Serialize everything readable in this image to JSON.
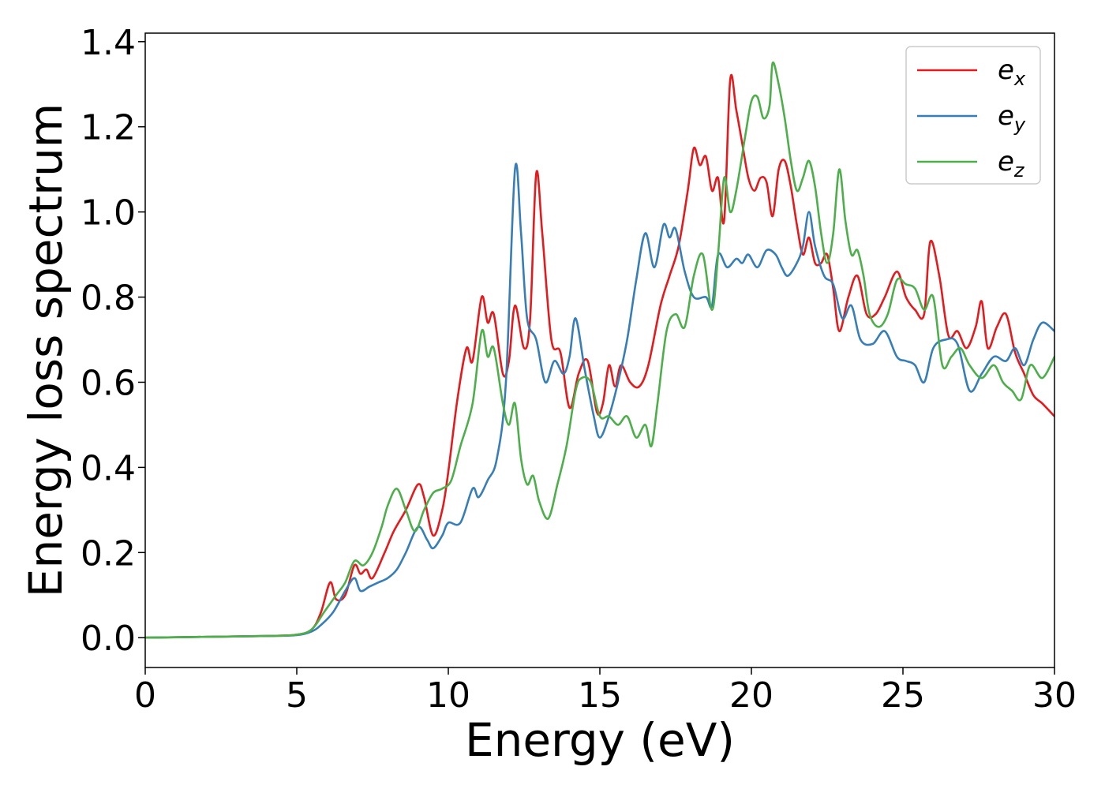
{
  "chart_data": {
    "type": "line",
    "title": "",
    "xlabel": "Energy (eV)",
    "ylabel": "Energy loss spectrum",
    "xlim": [
      0,
      30
    ],
    "ylim": [
      -0.07,
      1.42
    ],
    "x_ticks": [
      0,
      5,
      10,
      15,
      20,
      25,
      30
    ],
    "y_ticks": [
      0.0,
      0.2,
      0.4,
      0.6,
      0.8,
      1.0,
      1.2,
      1.4
    ],
    "x_tick_labels": [
      "0",
      "5",
      "10",
      "15",
      "20",
      "25",
      "30"
    ],
    "y_tick_labels": [
      "0.0",
      "0.2",
      "0.4",
      "0.6",
      "0.8",
      "1.0",
      "1.2",
      "1.4"
    ],
    "grid": false,
    "legend_position": "top-right",
    "series": [
      {
        "name": "e_x",
        "label_base": "e",
        "label_sub": "x",
        "color": "#e41a1c",
        "points": [
          [
            0,
            0
          ],
          [
            2,
            0.002
          ],
          [
            4,
            0.004
          ],
          [
            5,
            0.007
          ],
          [
            5.5,
            0.02
          ],
          [
            5.8,
            0.06
          ],
          [
            6.1,
            0.13
          ],
          [
            6.3,
            0.09
          ],
          [
            6.6,
            0.1
          ],
          [
            6.9,
            0.17
          ],
          [
            7.1,
            0.15
          ],
          [
            7.3,
            0.16
          ],
          [
            7.5,
            0.14
          ],
          [
            7.9,
            0.2
          ],
          [
            8.2,
            0.25
          ],
          [
            8.6,
            0.3
          ],
          [
            9.0,
            0.36
          ],
          [
            9.2,
            0.33
          ],
          [
            9.5,
            0.24
          ],
          [
            9.8,
            0.3
          ],
          [
            10.0,
            0.39
          ],
          [
            10.3,
            0.56
          ],
          [
            10.6,
            0.68
          ],
          [
            10.8,
            0.65
          ],
          [
            11.1,
            0.8
          ],
          [
            11.3,
            0.74
          ],
          [
            11.5,
            0.76
          ],
          [
            11.8,
            0.62
          ],
          [
            12.0,
            0.65
          ],
          [
            12.2,
            0.78
          ],
          [
            12.5,
            0.68
          ],
          [
            12.7,
            0.75
          ],
          [
            12.9,
            1.09
          ],
          [
            13.1,
            0.95
          ],
          [
            13.4,
            0.7
          ],
          [
            13.7,
            0.67
          ],
          [
            14.0,
            0.54
          ],
          [
            14.3,
            0.62
          ],
          [
            14.6,
            0.65
          ],
          [
            14.9,
            0.53
          ],
          [
            15.1,
            0.55
          ],
          [
            15.3,
            0.64
          ],
          [
            15.5,
            0.59
          ],
          [
            15.7,
            0.64
          ],
          [
            16.0,
            0.6
          ],
          [
            16.3,
            0.59
          ],
          [
            16.6,
            0.64
          ],
          [
            17.0,
            0.78
          ],
          [
            17.3,
            0.85
          ],
          [
            17.6,
            0.92
          ],
          [
            17.9,
            1.05
          ],
          [
            18.1,
            1.15
          ],
          [
            18.3,
            1.11
          ],
          [
            18.5,
            1.13
          ],
          [
            18.7,
            1.05
          ],
          [
            18.9,
            1.08
          ],
          [
            19.1,
            0.98
          ],
          [
            19.3,
            1.31
          ],
          [
            19.5,
            1.24
          ],
          [
            19.7,
            1.16
          ],
          [
            19.9,
            1.08
          ],
          [
            20.1,
            1.05
          ],
          [
            20.3,
            1.08
          ],
          [
            20.5,
            1.07
          ],
          [
            20.7,
            0.99
          ],
          [
            20.9,
            1.1
          ],
          [
            21.1,
            1.12
          ],
          [
            21.3,
            1.06
          ],
          [
            21.5,
            0.97
          ],
          [
            21.7,
            0.9
          ],
          [
            21.9,
            0.94
          ],
          [
            22.1,
            0.88
          ],
          [
            22.3,
            0.88
          ],
          [
            22.5,
            0.9
          ],
          [
            22.7,
            0.82
          ],
          [
            22.9,
            0.72
          ],
          [
            23.2,
            0.8
          ],
          [
            23.5,
            0.85
          ],
          [
            23.8,
            0.76
          ],
          [
            24.1,
            0.76
          ],
          [
            24.4,
            0.8
          ],
          [
            24.8,
            0.86
          ],
          [
            25.1,
            0.8
          ],
          [
            25.4,
            0.77
          ],
          [
            25.7,
            0.76
          ],
          [
            25.9,
            0.93
          ],
          [
            26.2,
            0.85
          ],
          [
            26.5,
            0.71
          ],
          [
            26.8,
            0.72
          ],
          [
            27.1,
            0.68
          ],
          [
            27.4,
            0.73
          ],
          [
            27.6,
            0.79
          ],
          [
            27.8,
            0.68
          ],
          [
            28.1,
            0.73
          ],
          [
            28.4,
            0.76
          ],
          [
            28.7,
            0.67
          ],
          [
            29.0,
            0.62
          ],
          [
            29.3,
            0.57
          ],
          [
            29.6,
            0.55
          ],
          [
            30.0,
            0.52
          ]
        ]
      },
      {
        "name": "e_y",
        "label_base": "e",
        "label_sub": "y",
        "color": "#377eb8",
        "points": [
          [
            0,
            0
          ],
          [
            2,
            0.002
          ],
          [
            4,
            0.004
          ],
          [
            5,
            0.006
          ],
          [
            5.5,
            0.015
          ],
          [
            5.8,
            0.03
          ],
          [
            6.2,
            0.06
          ],
          [
            6.6,
            0.11
          ],
          [
            6.9,
            0.14
          ],
          [
            7.1,
            0.11
          ],
          [
            7.4,
            0.12
          ],
          [
            7.7,
            0.13
          ],
          [
            8.0,
            0.14
          ],
          [
            8.3,
            0.16
          ],
          [
            8.6,
            0.2
          ],
          [
            9.0,
            0.26
          ],
          [
            9.3,
            0.23
          ],
          [
            9.5,
            0.21
          ],
          [
            9.8,
            0.24
          ],
          [
            10.0,
            0.27
          ],
          [
            10.4,
            0.27
          ],
          [
            10.8,
            0.35
          ],
          [
            11.0,
            0.33
          ],
          [
            11.3,
            0.37
          ],
          [
            11.6,
            0.42
          ],
          [
            11.9,
            0.6
          ],
          [
            12.2,
            1.1
          ],
          [
            12.4,
            0.95
          ],
          [
            12.6,
            0.75
          ],
          [
            12.9,
            0.7
          ],
          [
            13.2,
            0.6
          ],
          [
            13.5,
            0.65
          ],
          [
            13.8,
            0.62
          ],
          [
            14.0,
            0.66
          ],
          [
            14.2,
            0.75
          ],
          [
            14.5,
            0.63
          ],
          [
            14.8,
            0.52
          ],
          [
            15.0,
            0.47
          ],
          [
            15.3,
            0.52
          ],
          [
            15.6,
            0.6
          ],
          [
            15.9,
            0.7
          ],
          [
            16.2,
            0.84
          ],
          [
            16.5,
            0.95
          ],
          [
            16.8,
            0.87
          ],
          [
            17.1,
            0.97
          ],
          [
            17.3,
            0.94
          ],
          [
            17.5,
            0.96
          ],
          [
            17.8,
            0.86
          ],
          [
            18.1,
            0.8
          ],
          [
            18.5,
            0.8
          ],
          [
            18.7,
            0.78
          ],
          [
            18.9,
            0.9
          ],
          [
            19.2,
            0.87
          ],
          [
            19.5,
            0.89
          ],
          [
            19.7,
            0.88
          ],
          [
            19.9,
            0.9
          ],
          [
            20.2,
            0.87
          ],
          [
            20.5,
            0.91
          ],
          [
            20.8,
            0.9
          ],
          [
            21.0,
            0.87
          ],
          [
            21.2,
            0.85
          ],
          [
            21.5,
            0.88
          ],
          [
            21.7,
            0.92
          ],
          [
            21.9,
            1.0
          ],
          [
            22.1,
            0.92
          ],
          [
            22.4,
            0.85
          ],
          [
            22.7,
            0.83
          ],
          [
            23.0,
            0.75
          ],
          [
            23.3,
            0.78
          ],
          [
            23.6,
            0.7
          ],
          [
            24.0,
            0.69
          ],
          [
            24.4,
            0.72
          ],
          [
            24.8,
            0.66
          ],
          [
            25.1,
            0.65
          ],
          [
            25.4,
            0.64
          ],
          [
            25.7,
            0.6
          ],
          [
            26.0,
            0.68
          ],
          [
            26.4,
            0.7
          ],
          [
            26.8,
            0.69
          ],
          [
            27.2,
            0.58
          ],
          [
            27.6,
            0.62
          ],
          [
            28.0,
            0.66
          ],
          [
            28.4,
            0.65
          ],
          [
            28.7,
            0.68
          ],
          [
            29.0,
            0.64
          ],
          [
            29.3,
            0.7
          ],
          [
            29.6,
            0.74
          ],
          [
            30.0,
            0.72
          ]
        ]
      },
      {
        "name": "e_z",
        "label_base": "e",
        "label_sub": "z",
        "color": "#4daf4a",
        "points": [
          [
            0,
            0
          ],
          [
            2,
            0.002
          ],
          [
            4,
            0.004
          ],
          [
            5,
            0.007
          ],
          [
            5.5,
            0.02
          ],
          [
            5.9,
            0.06
          ],
          [
            6.3,
            0.1
          ],
          [
            6.6,
            0.13
          ],
          [
            6.9,
            0.18
          ],
          [
            7.2,
            0.17
          ],
          [
            7.5,
            0.2
          ],
          [
            7.8,
            0.26
          ],
          [
            8.0,
            0.31
          ],
          [
            8.3,
            0.35
          ],
          [
            8.6,
            0.3
          ],
          [
            8.9,
            0.25
          ],
          [
            9.2,
            0.3
          ],
          [
            9.5,
            0.34
          ],
          [
            9.8,
            0.35
          ],
          [
            10.1,
            0.37
          ],
          [
            10.4,
            0.45
          ],
          [
            10.8,
            0.55
          ],
          [
            11.1,
            0.72
          ],
          [
            11.3,
            0.66
          ],
          [
            11.5,
            0.68
          ],
          [
            11.8,
            0.55
          ],
          [
            12.0,
            0.5
          ],
          [
            12.2,
            0.55
          ],
          [
            12.4,
            0.42
          ],
          [
            12.6,
            0.36
          ],
          [
            12.8,
            0.38
          ],
          [
            13.0,
            0.32
          ],
          [
            13.3,
            0.28
          ],
          [
            13.6,
            0.36
          ],
          [
            13.9,
            0.45
          ],
          [
            14.2,
            0.58
          ],
          [
            14.4,
            0.61
          ],
          [
            14.7,
            0.6
          ],
          [
            15.0,
            0.52
          ],
          [
            15.3,
            0.52
          ],
          [
            15.6,
            0.5
          ],
          [
            15.9,
            0.52
          ],
          [
            16.2,
            0.47
          ],
          [
            16.5,
            0.5
          ],
          [
            16.7,
            0.45
          ],
          [
            16.9,
            0.55
          ],
          [
            17.2,
            0.72
          ],
          [
            17.5,
            0.76
          ],
          [
            17.8,
            0.73
          ],
          [
            18.1,
            0.85
          ],
          [
            18.4,
            0.9
          ],
          [
            18.7,
            0.77
          ],
          [
            18.9,
            0.9
          ],
          [
            19.1,
            1.08
          ],
          [
            19.3,
            1.0
          ],
          [
            19.5,
            1.05
          ],
          [
            19.8,
            1.18
          ],
          [
            20.0,
            1.26
          ],
          [
            20.2,
            1.27
          ],
          [
            20.4,
            1.22
          ],
          [
            20.6,
            1.25
          ],
          [
            20.7,
            1.35
          ],
          [
            20.9,
            1.3
          ],
          [
            21.1,
            1.22
          ],
          [
            21.3,
            1.12
          ],
          [
            21.5,
            1.05
          ],
          [
            21.7,
            1.08
          ],
          [
            21.9,
            1.12
          ],
          [
            22.1,
            1.06
          ],
          [
            22.3,
            0.95
          ],
          [
            22.5,
            0.88
          ],
          [
            22.7,
            0.95
          ],
          [
            22.9,
            1.1
          ],
          [
            23.1,
            0.98
          ],
          [
            23.3,
            0.9
          ],
          [
            23.5,
            0.91
          ],
          [
            23.7,
            0.85
          ],
          [
            23.9,
            0.76
          ],
          [
            24.2,
            0.73
          ],
          [
            24.5,
            0.76
          ],
          [
            24.8,
            0.84
          ],
          [
            25.1,
            0.83
          ],
          [
            25.4,
            0.82
          ],
          [
            25.7,
            0.77
          ],
          [
            26.0,
            0.8
          ],
          [
            26.3,
            0.64
          ],
          [
            26.6,
            0.66
          ],
          [
            26.9,
            0.68
          ],
          [
            27.2,
            0.64
          ],
          [
            27.6,
            0.61
          ],
          [
            28.0,
            0.64
          ],
          [
            28.3,
            0.6
          ],
          [
            28.6,
            0.58
          ],
          [
            28.9,
            0.56
          ],
          [
            29.2,
            0.64
          ],
          [
            29.6,
            0.61
          ],
          [
            30.0,
            0.66
          ]
        ]
      }
    ]
  }
}
